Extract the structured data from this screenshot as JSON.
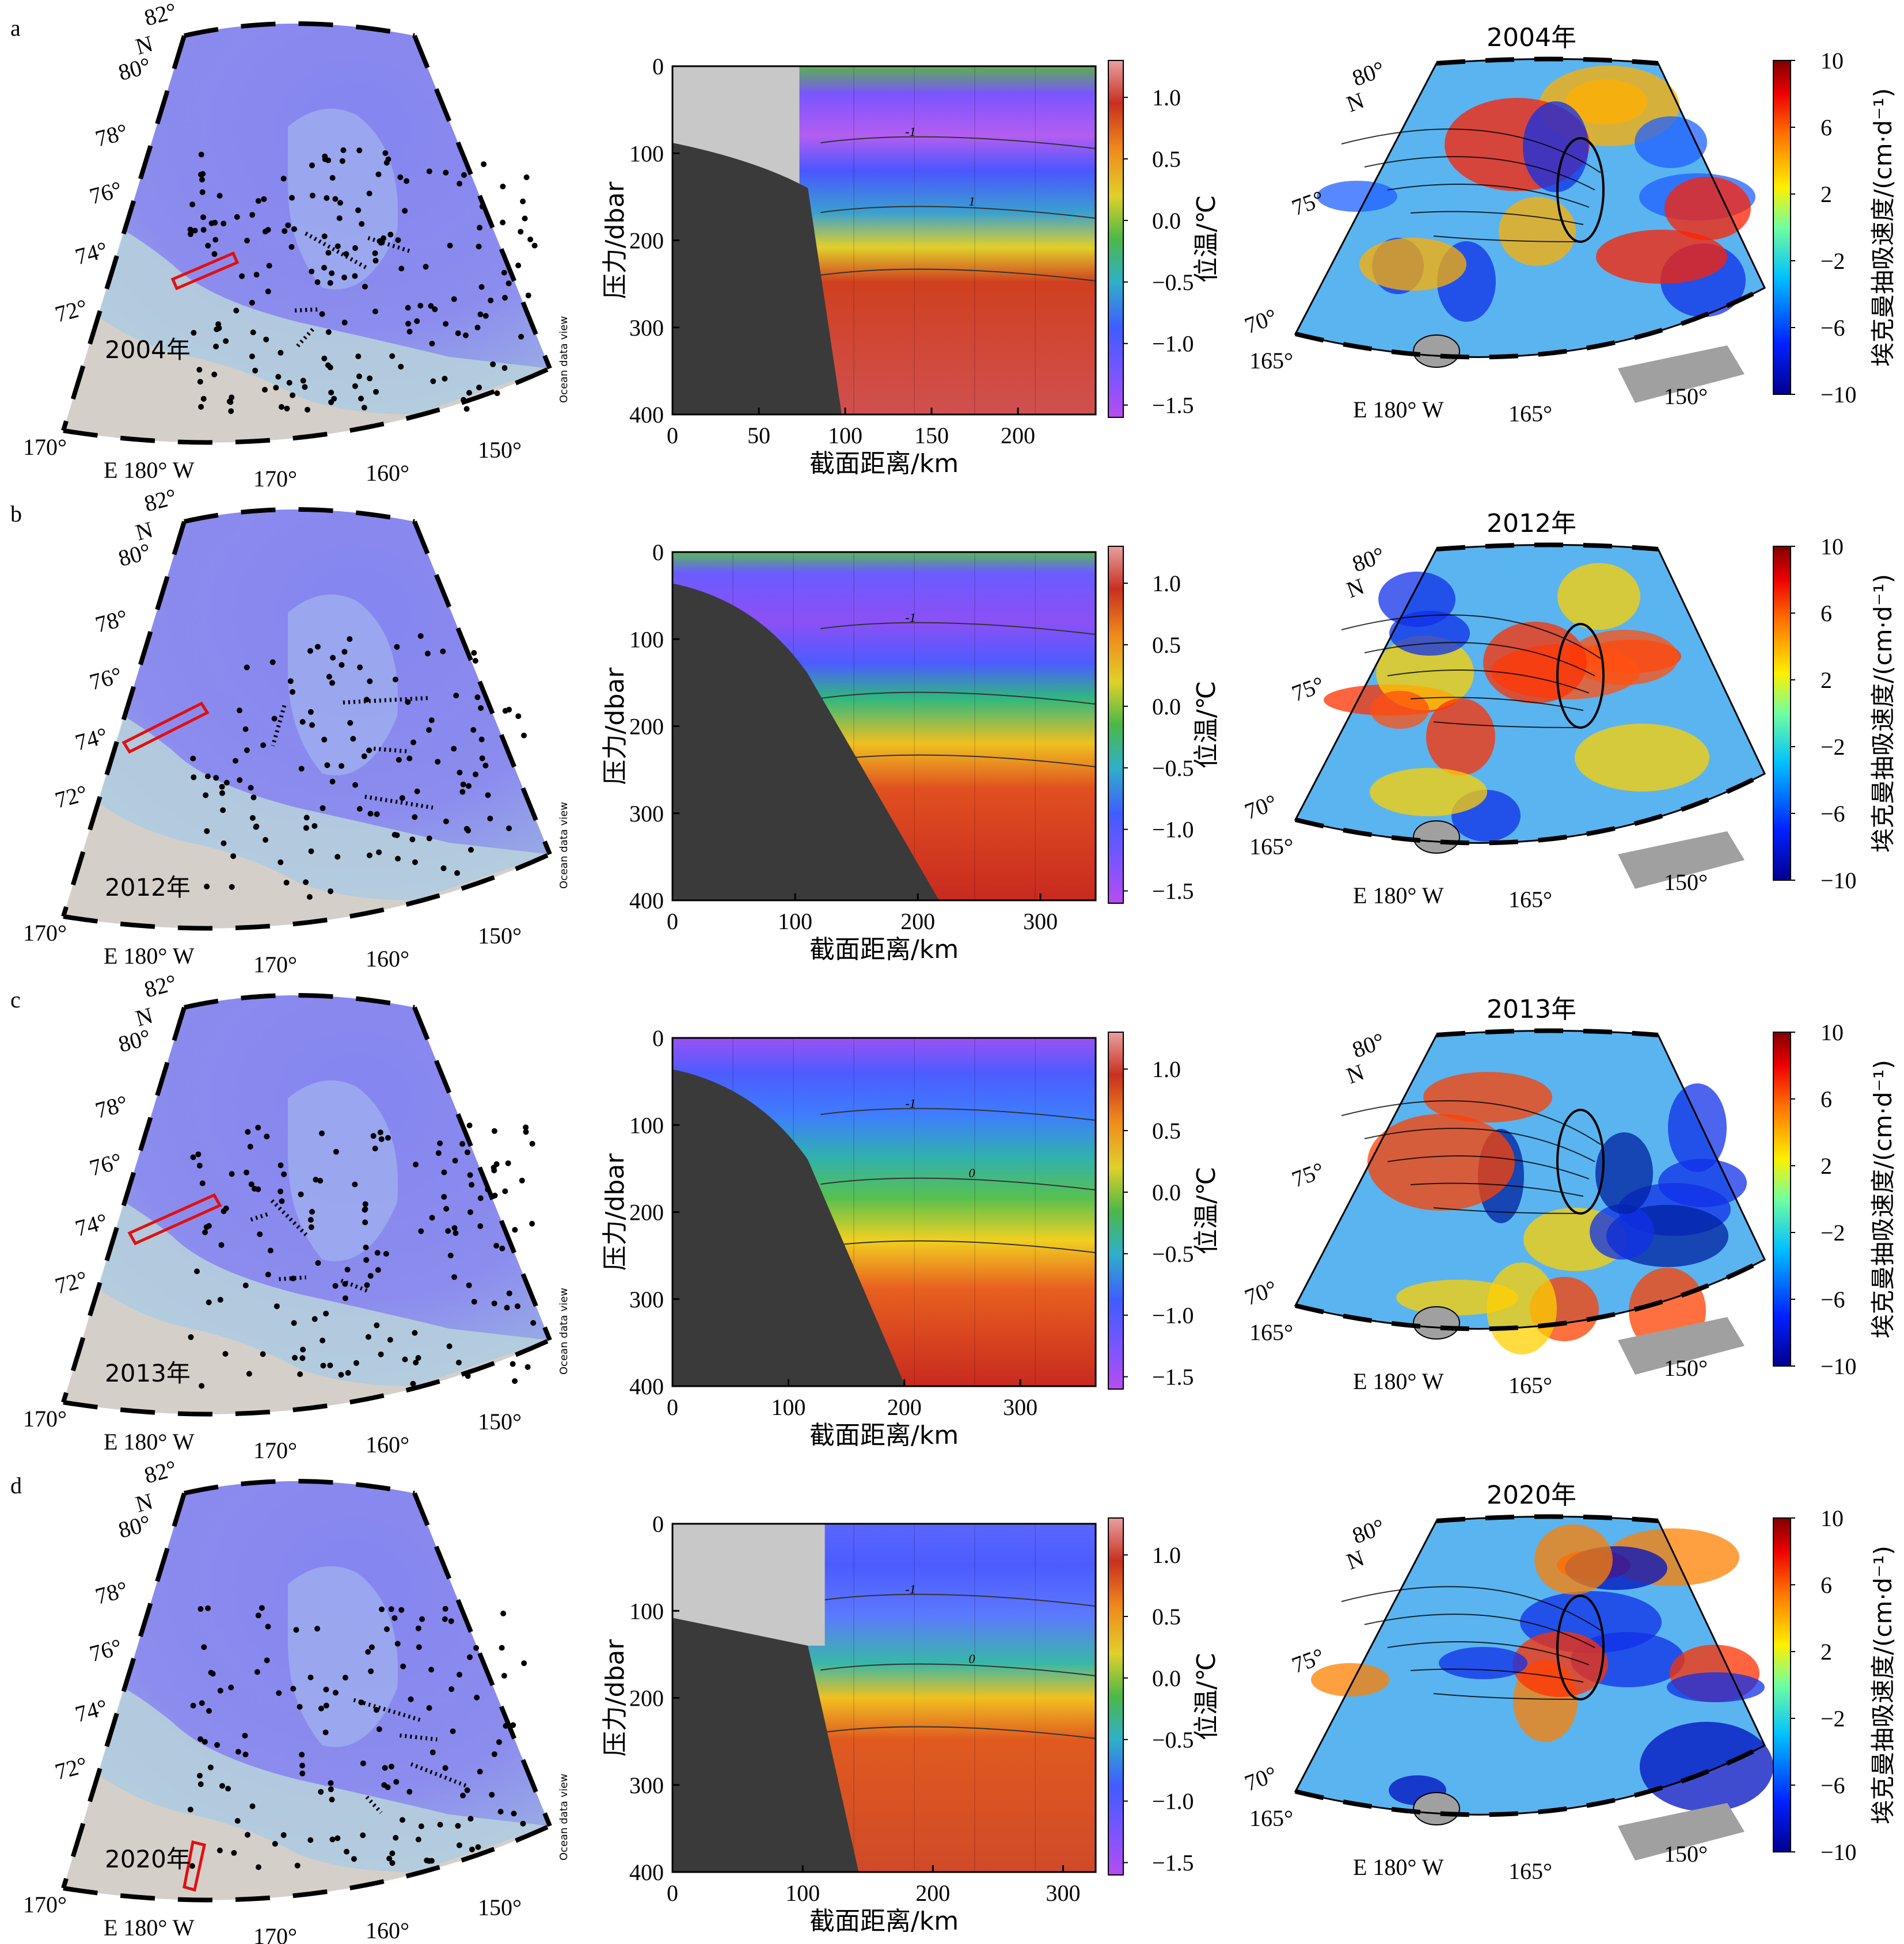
{
  "figure": {
    "shared": {
      "map_lat_labels": [
        "82°",
        "N",
        "80°",
        "78°",
        "76°",
        "74°",
        "72°",
        "170°"
      ],
      "map_lon_labels": [
        "E 180° W",
        "170°",
        "160°",
        "150°"
      ],
      "odv_credit": "Ocean data view",
      "section_xlabel": "截面距离/km",
      "section_ylabel": "压力/dbar",
      "section_cbar_label": "位温/℃",
      "section_cbar_ticks": [
        "1.0",
        "0.5",
        "0.0",
        "−0.5",
        "−1.0",
        "−1.5"
      ],
      "pump_lat_labels": [
        "80°",
        "N",
        "75°",
        "70°"
      ],
      "pump_lon_labels": [
        "165°",
        "E 180° W",
        "165°",
        "150°"
      ],
      "pump_cbar_label": "埃克曼抽吸速度/(cm·d⁻¹)",
      "pump_cbar_ticks": [
        "10",
        "6",
        "2",
        "−2",
        "−6",
        "−10"
      ]
    },
    "rows": [
      {
        "letter": "a",
        "year_map": "2004年",
        "year_title": "2004年"
      },
      {
        "letter": "b",
        "year_map": "2012年",
        "year_title": "2012年"
      },
      {
        "letter": "c",
        "year_map": "2013年",
        "year_title": "2013年"
      },
      {
        "letter": "d",
        "year_map": "2020年",
        "year_title": "2020年"
      }
    ]
  },
  "chart_data": [
    {
      "type": "heatmap",
      "panel": "a-section",
      "title": "",
      "xlabel": "截面距离/km",
      "ylabel": "压力/dbar",
      "xlim": [
        0,
        245
      ],
      "ylim": [
        400,
        0
      ],
      "xticks": [
        0,
        50,
        100,
        150,
        200
      ],
      "yticks": [
        0,
        100,
        200,
        300,
        400
      ],
      "colorbar": {
        "label": "位温/℃",
        "range": [
          -1.6,
          1.3
        ],
        "ticks": [
          1.0,
          0.5,
          0.0,
          -0.5,
          -1.0,
          -1.5
        ]
      },
      "contours": [
        "-1",
        "1"
      ]
    },
    {
      "type": "heatmap",
      "panel": "b-section",
      "title": "",
      "xlabel": "截面距离/km",
      "ylabel": "压力/dbar",
      "xlim": [
        0,
        345
      ],
      "ylim": [
        400,
        0
      ],
      "xticks": [
        0,
        100,
        200,
        300
      ],
      "yticks": [
        0,
        100,
        200,
        300,
        400
      ],
      "colorbar": {
        "label": "位温/℃",
        "range": [
          -1.6,
          1.3
        ],
        "ticks": [
          1.0,
          0.5,
          0.0,
          -0.5,
          -1.0,
          -1.5
        ]
      },
      "contours": [
        "-1"
      ]
    },
    {
      "type": "heatmap",
      "panel": "c-section",
      "title": "",
      "xlabel": "截面距离/km",
      "ylabel": "压力/dbar",
      "xlim": [
        0,
        365
      ],
      "ylim": [
        400,
        0
      ],
      "xticks": [
        0,
        100,
        200,
        300
      ],
      "yticks": [
        0,
        100,
        200,
        300,
        400
      ],
      "colorbar": {
        "label": "位温/℃",
        "range": [
          -1.6,
          1.3
        ],
        "ticks": [
          1.0,
          0.5,
          0.0,
          -0.5,
          -1.0,
          -1.5
        ]
      },
      "contours": [
        "-1",
        "0"
      ]
    },
    {
      "type": "heatmap",
      "panel": "d-section",
      "title": "",
      "xlabel": "截面距离/km",
      "ylabel": "压力/dbar",
      "xlim": [
        0,
        325
      ],
      "ylim": [
        400,
        0
      ],
      "xticks": [
        0,
        100,
        200,
        300
      ],
      "yticks": [
        0,
        100,
        200,
        300,
        400
      ],
      "colorbar": {
        "label": "位温/℃",
        "range": [
          -1.6,
          1.3
        ],
        "ticks": [
          1.0,
          0.5,
          0.0,
          -0.5,
          -1.0,
          -1.5
        ]
      },
      "contours": [
        "-1",
        "0"
      ]
    },
    {
      "type": "heatmap",
      "panel": "a-pumping",
      "title": "2004年",
      "colorbar": {
        "label": "埃克曼抽吸速度/(cm·d⁻¹)",
        "range": [
          -10,
          10
        ],
        "ticks": [
          10,
          6,
          2,
          -2,
          -6,
          -10
        ]
      }
    },
    {
      "type": "heatmap",
      "panel": "b-pumping",
      "title": "2012年",
      "colorbar": {
        "label": "埃克曼抽吸速度/(cm·d⁻¹)",
        "range": [
          -10,
          10
        ],
        "ticks": [
          10,
          6,
          2,
          -2,
          -6,
          -10
        ]
      }
    },
    {
      "type": "heatmap",
      "panel": "c-pumping",
      "title": "2013年",
      "colorbar": {
        "label": "埃克曼抽吸速度/(cm·d⁻¹)",
        "range": [
          -10,
          10
        ],
        "ticks": [
          10,
          6,
          2,
          -2,
          -6,
          -10
        ]
      }
    },
    {
      "type": "heatmap",
      "panel": "d-pumping",
      "title": "2020年",
      "colorbar": {
        "label": "埃克曼抽吸速度/(cm·d⁻¹)",
        "range": [
          -10,
          10
        ],
        "ticks": [
          10,
          6,
          2,
          -2,
          -6,
          -10
        ]
      }
    }
  ]
}
